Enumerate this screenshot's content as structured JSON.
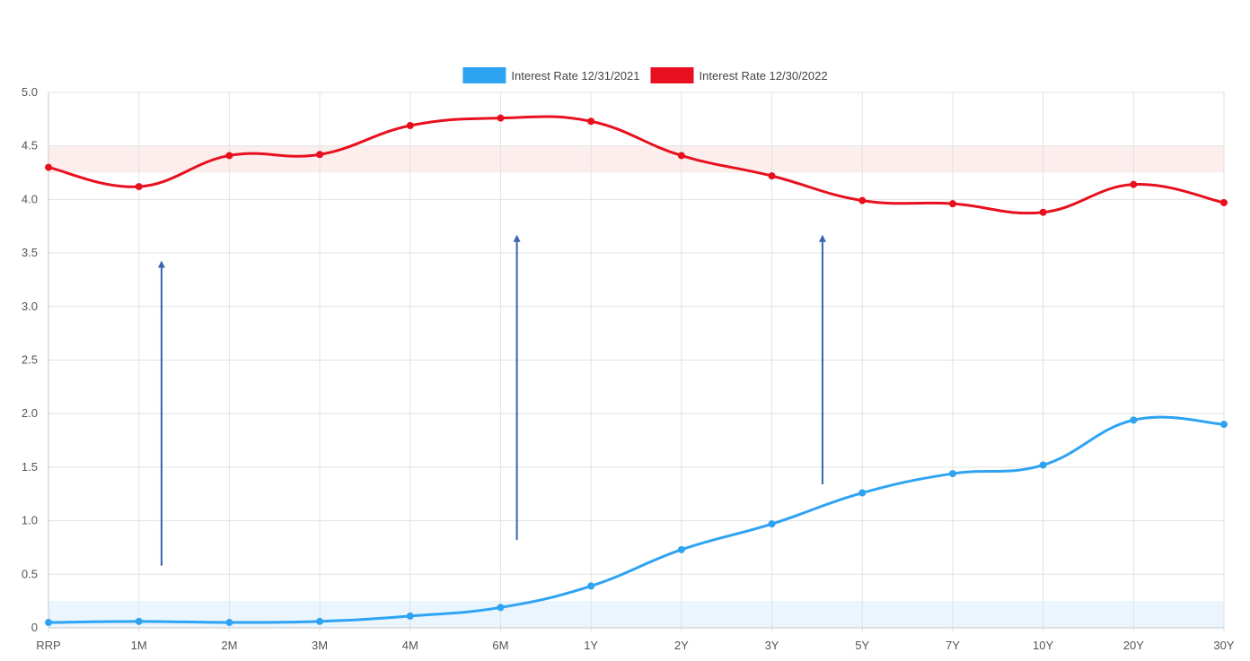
{
  "chart_data": {
    "type": "line",
    "title": "",
    "xlabel": "",
    "ylabel": "",
    "categories": [
      "RRP",
      "1M",
      "2M",
      "3M",
      "4M",
      "6M",
      "1Y",
      "2Y",
      "3Y",
      "5Y",
      "7Y",
      "10Y",
      "20Y",
      "30Y"
    ],
    "ylim": [
      0,
      5.0
    ],
    "yticks": [
      "0",
      "0.5",
      "1.0",
      "1.5",
      "2.0",
      "2.5",
      "3.0",
      "3.5",
      "4.0",
      "4.5",
      "5.0"
    ],
    "ytick_values": [
      0,
      0.5,
      1.0,
      1.5,
      2.0,
      2.5,
      3.0,
      3.5,
      4.0,
      4.5,
      5.0
    ],
    "grid": true,
    "legend_position": "top-center",
    "series": [
      {
        "name": "Interest Rate 12/31/2021",
        "color": "#2ea3f2",
        "values": [
          0.05,
          0.06,
          0.05,
          0.06,
          0.11,
          0.19,
          0.39,
          0.73,
          0.97,
          1.26,
          1.44,
          1.52,
          1.94,
          1.9
        ]
      },
      {
        "name": "Interest Rate 12/30/2022",
        "color": "#e8101e",
        "values": [
          4.3,
          4.12,
          4.41,
          4.42,
          4.69,
          4.76,
          4.73,
          4.41,
          4.22,
          3.99,
          3.96,
          3.88,
          4.14,
          3.97
        ]
      }
    ],
    "bands": [
      {
        "from": 0.0,
        "to": 0.25,
        "color": "#eaf5fd"
      },
      {
        "from": 4.25,
        "to": 4.5,
        "color": "#fdeeee"
      }
    ],
    "annotations": [
      {
        "type": "arrow",
        "x_category_pos": 1.25,
        "y_from": 0.58,
        "y_to": 3.43,
        "color": "#3a64b0"
      },
      {
        "type": "arrow",
        "x_category_pos": 5.18,
        "y_from": 0.82,
        "y_to": 3.67,
        "color": "#3a64b0"
      },
      {
        "type": "arrow",
        "x_category_pos": 8.56,
        "y_from": 1.34,
        "y_to": 3.67,
        "color": "#3a64b0"
      }
    ]
  }
}
